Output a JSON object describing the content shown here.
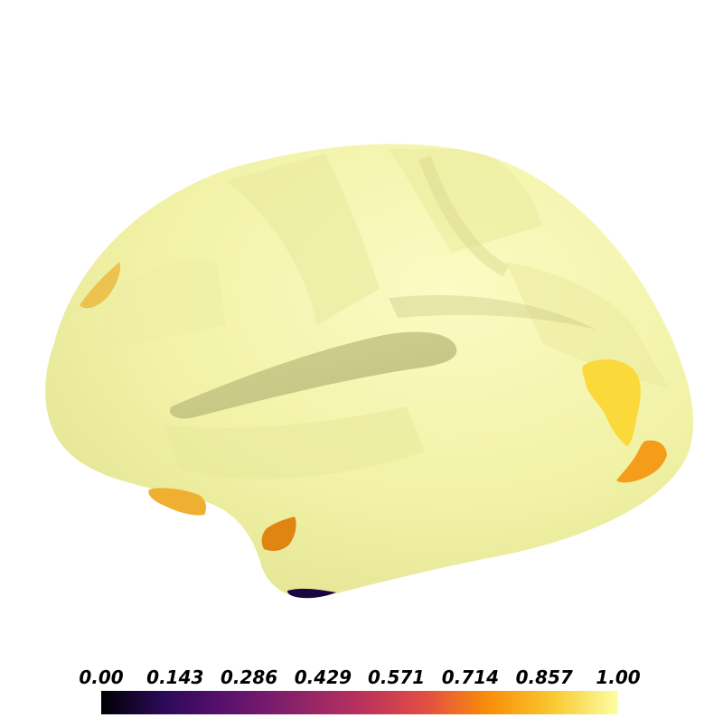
{
  "figure": {
    "type": "inflated cortical surface rendering",
    "colormap": "inferno",
    "background": "#ffffff"
  },
  "colorbar": {
    "range": [
      0.0,
      1.0
    ],
    "orientation": "horizontal",
    "colormap_stops": [
      "#000004",
      "#2d0a5b",
      "#5d126e",
      "#8a226a",
      "#b8325d",
      "#e14d44",
      "#f98e09",
      "#f9c932",
      "#fcffa4"
    ],
    "ticks": [
      {
        "value": 0.0,
        "label": "0.00"
      },
      {
        "value": 0.143,
        "label": "0.143"
      },
      {
        "value": 0.286,
        "label": "0.286"
      },
      {
        "value": 0.429,
        "label": "0.429"
      },
      {
        "value": 0.571,
        "label": "0.571"
      },
      {
        "value": 0.714,
        "label": "0.714"
      },
      {
        "value": 0.857,
        "label": "0.857"
      },
      {
        "value": 1.0,
        "label": "1.00"
      }
    ]
  },
  "surface": {
    "base_color": "#f1f2a6",
    "highlighted_regions": [
      {
        "id": "region-frontal-left",
        "value": 0.88,
        "color": "#ecc34f"
      },
      {
        "id": "region-parietal-right",
        "value": 0.92,
        "color": "#fcd93a"
      },
      {
        "id": "region-occipital-right",
        "value": 0.8,
        "color": "#f59d1b"
      },
      {
        "id": "region-temporal-pole",
        "value": 0.83,
        "color": "#efb032"
      },
      {
        "id": "region-temporal-anterior",
        "value": 0.72,
        "color": "#e18512"
      },
      {
        "id": "region-temporal-inferior",
        "value": 0.05,
        "color": "#1c0642"
      }
    ]
  }
}
